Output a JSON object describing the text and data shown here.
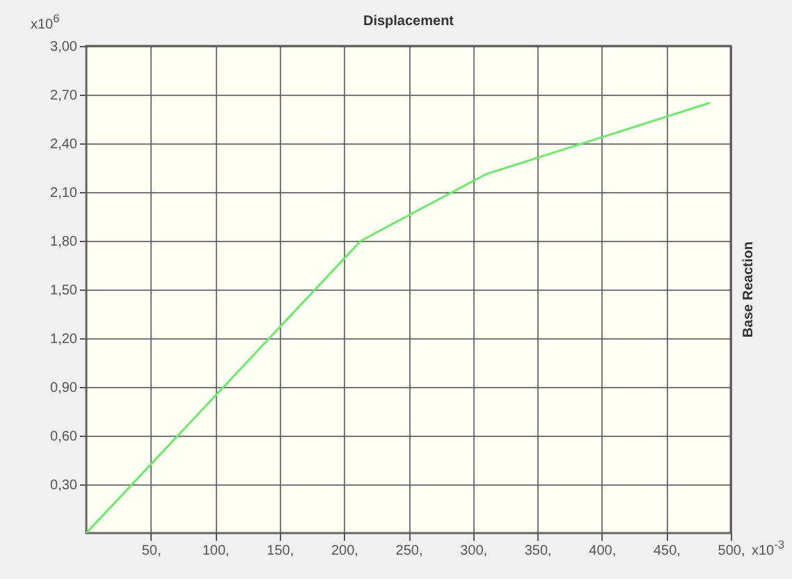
{
  "chart_data": {
    "type": "line",
    "title": "Displacement",
    "ylabel": "Base Reaction",
    "annotations": [
      "x10$^{6}$",
      "x10$^{-3}$"
    ],
    "x": [
      0,
      213,
      310,
      484
    ],
    "series": [
      {
        "color": "#66ee66",
        "values": [
          0,
          1.8,
          2.21,
          2.65
        ]
      }
    ],
    "xlim": [
      0,
      500
    ],
    "xticks": [
      {
        "value": 50,
        "label": "50,"
      },
      {
        "value": 100,
        "label": "100,"
      },
      {
        "value": 150,
        "label": "150,"
      },
      {
        "value": 200,
        "label": "200,"
      },
      {
        "value": 250,
        "label": "250,"
      },
      {
        "value": 300,
        "label": "300,"
      },
      {
        "value": 350,
        "label": "350,"
      },
      {
        "value": 400,
        "label": "400,"
      },
      {
        "value": 450,
        "label": "450,"
      },
      {
        "value": 500,
        "label": "500,"
      }
    ],
    "ylim": [
      0,
      3.0
    ],
    "yticks": [
      {
        "value": 0.3,
        "label": "0,30"
      },
      {
        "value": 0.6,
        "label": "0,60"
      },
      {
        "value": 0.9,
        "label": "0,90"
      },
      {
        "value": 1.2,
        "label": "1,20"
      },
      {
        "value": 1.5,
        "label": "1,50"
      },
      {
        "value": 1.8,
        "label": "1,80"
      },
      {
        "value": 2.1,
        "label": "2,10"
      },
      {
        "value": 2.4,
        "label": "2,40"
      },
      {
        "value": 2.7,
        "label": "2,70"
      },
      {
        "value": 3.0,
        "label": "3,00"
      }
    ],
    "grid": true,
    "marker": "none",
    "line_style": "solid"
  }
}
